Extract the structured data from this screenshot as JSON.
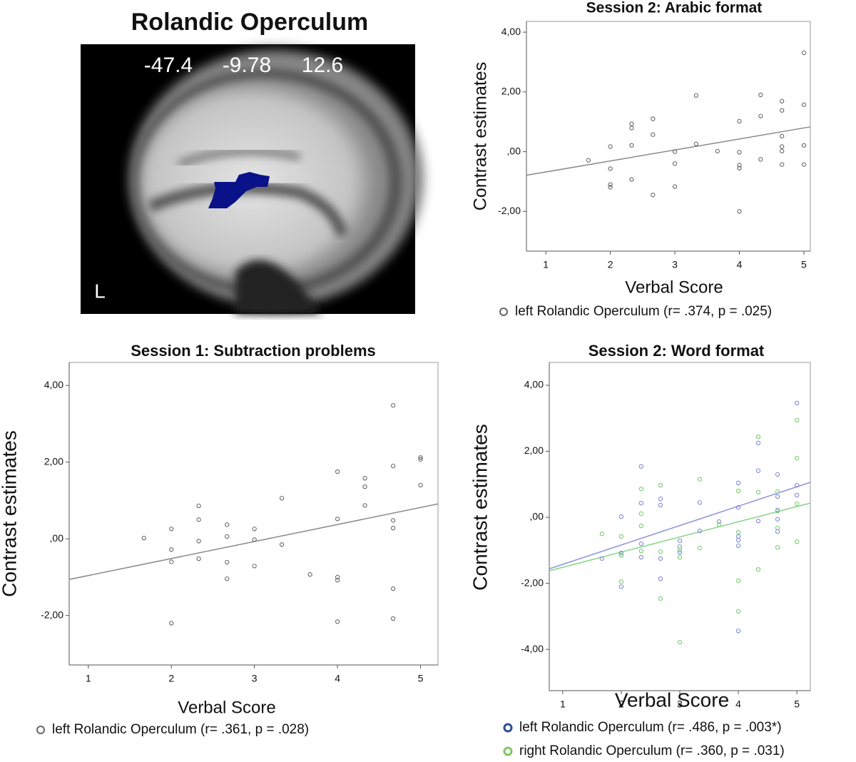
{
  "image": {
    "title": "Rolandic Operculum",
    "coordinates": [
      "-47.4",
      "-9.78",
      "12.6"
    ],
    "side": "L"
  },
  "chart_data": [
    {
      "type": "scatter",
      "title": "Session 2: Arabic format",
      "x_label": "Verbal Score",
      "y_label": "Contrast estimates",
      "xlim": [
        0.7,
        5.1
      ],
      "ylim": [
        -3.33,
        4.36
      ],
      "xticks": [
        1,
        2,
        3,
        4,
        5
      ],
      "yticks": [
        {
          "value": 4,
          "label": "4,00"
        },
        {
          "value": 2,
          "label": "2,00"
        },
        {
          "value": 0,
          "label": ",00"
        },
        {
          "value": -2,
          "label": "-2,00"
        }
      ],
      "series": [
        {
          "name": "left Rolandic Operculum (r= .374, p = .025)",
          "color": "#666666",
          "fit_color": "#8a8a8a",
          "x": [
            1.66,
            2,
            2,
            2,
            2,
            2.33,
            2.33,
            2.33,
            2.33,
            2.66,
            2.66,
            2.66,
            3,
            3,
            3,
            3.33,
            3.33,
            3.66,
            4,
            4,
            4,
            4,
            4,
            4.33,
            4.33,
            4.33,
            4.66,
            4.66,
            4.66,
            4.66,
            4.66,
            4.66,
            5,
            5,
            5,
            5
          ],
          "y": [
            -0.29,
            0.17,
            -0.57,
            -1.1,
            -1.19,
            0.93,
            0.79,
            0.21,
            -0.93,
            1.1,
            0.57,
            -1.45,
            0,
            -0.4,
            -1.17,
            1.88,
            0.26,
            0.02,
            1.02,
            -0.02,
            -0.45,
            -0.55,
            -2,
            1.9,
            1.19,
            -0.26,
            1.69,
            1.38,
            0.52,
            0.17,
            0.02,
            -0.43,
            3.31,
            1.57,
            0.21,
            -0.43
          ],
          "fit": {
            "x": [
              0.7,
              5.1
            ],
            "y": [
              -0.79,
              0.83
            ]
          }
        }
      ]
    },
    {
      "type": "scatter",
      "title": "Session 1: Subtraction problems",
      "x_label": "Verbal Score",
      "y_label": "Contrast estimates",
      "xlim": [
        0.77,
        5.21
      ],
      "ylim": [
        -3.29,
        4.6
      ],
      "xticks": [
        1,
        2,
        3,
        4,
        5
      ],
      "yticks": [
        {
          "value": 4,
          "label": "4,00"
        },
        {
          "value": 2,
          "label": "2,00"
        },
        {
          "value": 0,
          "label": ",00"
        },
        {
          "value": -2,
          "label": "-2,00"
        }
      ],
      "series": [
        {
          "name": "left Rolandic Operculum (r= .361, p = .028)",
          "color": "#666666",
          "fit_color": "#8a8a8a",
          "x": [
            1.67,
            2,
            2,
            2,
            2,
            2.33,
            2.33,
            2.33,
            2.33,
            2.67,
            2.67,
            2.67,
            2.67,
            3,
            3,
            3,
            3.33,
            3.33,
            3.67,
            4,
            4,
            4,
            4,
            4,
            4.33,
            4.33,
            4.33,
            4.67,
            4.67,
            4.67,
            4.67,
            4.67,
            4.67,
            5,
            5,
            5
          ],
          "y": [
            0.02,
            0.26,
            -0.28,
            -0.6,
            -2.2,
            0.86,
            0.5,
            -0.06,
            -0.52,
            0.37,
            0.06,
            -0.61,
            -1.04,
            0.26,
            -0.02,
            -0.71,
            -0.15,
            1.06,
            -0.93,
            1.75,
            0.52,
            -1,
            -1.08,
            -2.16,
            1.58,
            1.36,
            0.87,
            3.48,
            1.9,
            0.48,
            0.28,
            -1.3,
            -2.08,
            2.12,
            2.07,
            1.4
          ],
          "fit": {
            "x": [
              0.77,
              5.21
            ],
            "y": [
              -1.06,
              0.91
            ]
          }
        }
      ]
    },
    {
      "type": "scatter",
      "title": "Session 2: Word format",
      "x_label": "Verbal Score",
      "y_label": "Contrast estimates",
      "xlim": [
        0.77,
        5.23
      ],
      "ylim": [
        -5.25,
        4.69
      ],
      "xticks": [
        1,
        2,
        3,
        4,
        5
      ],
      "yticks": [
        {
          "value": 4,
          "label": "4,00"
        },
        {
          "value": 2,
          "label": "2,00"
        },
        {
          "value": 0,
          "label": ",00"
        },
        {
          "value": -2,
          "label": "-2,00"
        },
        {
          "value": -4,
          "label": "-4,00"
        }
      ],
      "series": [
        {
          "name": "left Rolandic Operculum (r= .486, p = .003*)",
          "color": "#7f88d8",
          "fit_color": "#8f93dc",
          "legend_color": "#2f4f8f",
          "x": [
            1.67,
            2,
            2,
            2,
            2,
            2.34,
            2.34,
            2.34,
            2.34,
            2.67,
            2.67,
            2.67,
            2.67,
            3,
            3,
            3,
            3.34,
            3.34,
            3.67,
            4,
            4,
            4,
            4,
            4,
            4,
            4.34,
            4.34,
            4.34,
            4.67,
            4.67,
            4.67,
            4.67,
            4.67,
            5,
            5,
            5
          ],
          "y": [
            -1.25,
            0.02,
            -1.08,
            -1.15,
            -2.1,
            1.54,
            0.43,
            -1.21,
            -0.8,
            0.56,
            0.37,
            -1.25,
            -1.86,
            -0.71,
            -0.89,
            -1.06,
            0.45,
            -0.41,
            -0.13,
            1.04,
            0.3,
            -0.58,
            -0.69,
            -0.86,
            -3.44,
            2.25,
            1.41,
            -0.11,
            1.3,
            0.63,
            0.22,
            -0.06,
            -0.43,
            3.46,
            0.97,
            0.67
          ],
          "fit": {
            "x": [
              0.77,
              5.23
            ],
            "y": [
              -1.56,
              1.06
            ]
          }
        },
        {
          "name": "right Rolandic Operculum (r= .360, p = .031)",
          "color": "#76cc6e",
          "fit_color": "#86d486",
          "legend_color": "#7bc95f",
          "x": [
            1.67,
            2,
            2,
            2,
            2.34,
            2.34,
            2.34,
            2.34,
            2.67,
            2.67,
            2.67,
            3,
            3,
            3,
            3.34,
            3.34,
            3.67,
            4,
            4,
            4,
            4,
            4.34,
            4.34,
            4.34,
            4.67,
            4.67,
            4.67,
            4.67,
            5,
            5,
            5,
            5
          ],
          "y": [
            -0.5,
            -0.58,
            -1.15,
            -1.95,
            0.86,
            0.11,
            -0.26,
            -1.02,
            0.97,
            -1.04,
            -2.46,
            -0.99,
            -1.21,
            -3.78,
            1.15,
            -0.93,
            -0.22,
            0.8,
            -0.45,
            -1.92,
            -2.85,
            2.44,
            0.76,
            -1.58,
            0.78,
            0.19,
            -0.32,
            -0.91,
            2.94,
            1.79,
            0.41,
            -0.74
          ],
          "fit": {
            "x": [
              0.77,
              5.23
            ],
            "y": [
              -1.62,
              0.43
            ]
          }
        }
      ]
    }
  ]
}
